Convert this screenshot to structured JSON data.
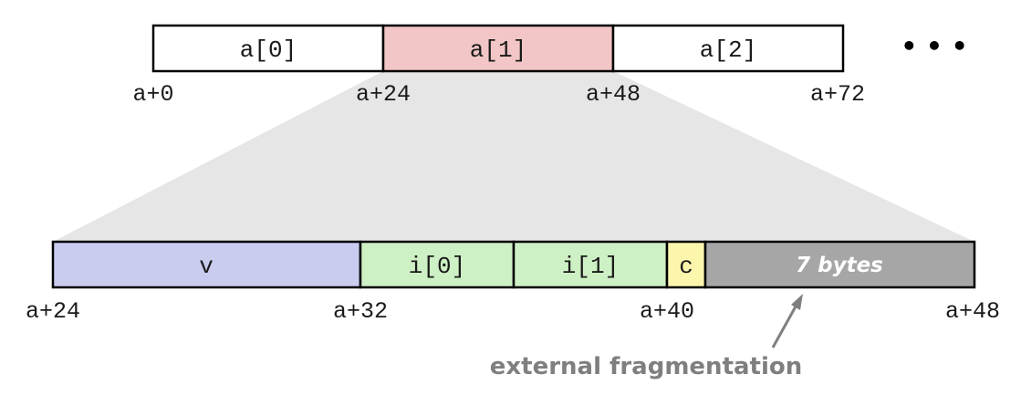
{
  "array": {
    "cells": [
      "a[0]",
      "a[1]",
      "a[2]"
    ],
    "offsets": [
      "a+0",
      "a+24",
      "a+48",
      "a+72"
    ],
    "continuation": "• • •"
  },
  "struct": {
    "fields": [
      "v",
      "i[0]",
      "i[1]",
      "c",
      "7 bytes"
    ],
    "offsets": [
      "a+24",
      "a+32",
      "a+40",
      "a+48"
    ]
  },
  "annotation": {
    "label": "external fragmentation"
  },
  "colors": {
    "highlight": "#f2c6c6",
    "v": "#c9cbef",
    "int": "#cdf0c4",
    "char": "#fcf6ad",
    "padding": "#a6a6a6",
    "zoom": "#e6e6e6",
    "annotation": "#7f7f7f"
  }
}
